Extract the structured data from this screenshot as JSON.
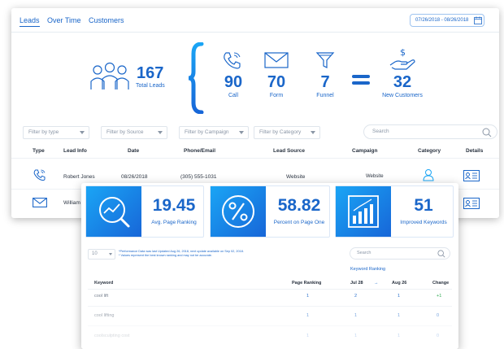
{
  "leads_panel": {
    "tabs": [
      "Leads",
      "Over Time",
      "Customers"
    ],
    "date_range": "07/26/2018 - 08/26/2018",
    "total_leads": {
      "value": "167",
      "label": "Total Leads"
    },
    "channels": [
      {
        "value": "90",
        "label": "Call",
        "icon": "phone-icon"
      },
      {
        "value": "70",
        "label": "Form",
        "icon": "envelope-icon"
      },
      {
        "value": "7",
        "label": "Funnel",
        "icon": "funnel-icon"
      }
    ],
    "new_customers": {
      "value": "32",
      "label": "New Customers"
    },
    "filters": [
      "Filter by type",
      "Filter by Source",
      "Filter by Campaign",
      "Filter by Category"
    ],
    "search_placeholder": "Search",
    "columns": [
      "Type",
      "Lead Info",
      "Date",
      "Phone/Email",
      "Lead Source",
      "Campaign",
      "Category",
      "Details"
    ],
    "rows": [
      {
        "type": "phone-icon",
        "name": "Robert Jones",
        "date": "08/26/2018",
        "contact": "(305) 555-1031",
        "source": "Website",
        "campaign": "Website"
      },
      {
        "type": "envelope-icon",
        "name": "William"
      }
    ],
    "accent_color": "#1a66c9"
  },
  "ranking_panel": {
    "cards": [
      {
        "value": "19.45",
        "label": "Avg. Page Ranking",
        "icon": "search-chart-icon"
      },
      {
        "value": "58.82",
        "label": "Percent on Page One",
        "icon": "percent-icon"
      },
      {
        "value": "51",
        "label": "Improved Keywords",
        "icon": "bar-chart-icon"
      }
    ],
    "select_value": "10",
    "notes": [
      "*Performance Data was last Updated Aug 26, 2018, next update available on Sep 02, 2018.",
      "* Values represent the best known ranking and may not be accurate."
    ],
    "search_placeholder": "Search",
    "keyword_ranking_title": "Keyword Ranking",
    "columns": {
      "keyword": "Keyword",
      "page_ranking": "Page Ranking",
      "d1": "Jul 28",
      "arrow": "→",
      "d2": "Aug 26",
      "change": "Change"
    },
    "rows": [
      {
        "keyword": "cool lift",
        "page": "1",
        "jul": "2",
        "aug": "1",
        "change": "+1"
      },
      {
        "keyword": "cool lifting",
        "page": "1",
        "jul": "1",
        "aug": "1",
        "change": "0"
      },
      {
        "keyword": "coolsculpting cost",
        "page": "1",
        "jul": "1",
        "aug": "1",
        "change": "0"
      }
    ]
  }
}
